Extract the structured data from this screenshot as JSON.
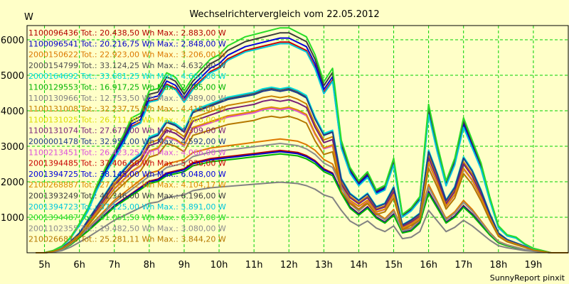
{
  "chart_data": {
    "type": "line",
    "title": "Wechselrichtervergleich vom 22.05.2012",
    "y_unit": "W",
    "x_tick_labels": [
      "5h",
      "6h",
      "7h",
      "8h",
      "9h",
      "10h",
      "11h",
      "12h",
      "13h",
      "14h",
      "15h",
      "16h",
      "17h",
      "18h",
      "19h"
    ],
    "y_tick_labels": [
      "1000",
      "2000",
      "3000",
      "4000",
      "5000",
      "6000"
    ],
    "ylim": [
      0,
      6400
    ],
    "xlim": [
      4.5,
      20.0
    ],
    "grid": true,
    "legend_position": "top-left",
    "footer": "SunnyReport pinxit",
    "series": [
      {
        "name": "1100096436 Tot.: 20.438,50 Wh Max.: 2.883,00 W",
        "color": "#b40000",
        "shape": "S",
        "peak": 2883
      },
      {
        "name": "1100096541 Tot.: 20.216,75 Wh Max.: 2.848,00 W",
        "color": "#0000c8",
        "shape": "S",
        "peak": 2848
      },
      {
        "name": "2000150622 Tot.: 22.923,00 Wh Max.: 3.206,00 W",
        "color": "#dc7800",
        "shape": "S",
        "peak": 3206
      },
      {
        "name": "2000154799 Tot.: 33.124,25 Wh Max.: 4.632,00 W",
        "color": "#505050",
        "shape": "M",
        "peak": 4632
      },
      {
        "name": "2000164692 Tot.: 33.681,25 Wh Max.: 4.664,00 W",
        "color": "#00dcdc",
        "shape": "M",
        "peak": 4664
      },
      {
        "name": "1100129553 Tot.: 16.917,25 Wh Max.: 2.785,00 W",
        "color": "#00b400",
        "shape": "S",
        "peak": 2785
      },
      {
        "name": "1100130966 Tot.: 12.753,50 Wh Max.: 1.989,00 W",
        "color": "#828282",
        "shape": "S",
        "peak": 1989
      },
      {
        "name": "1100131008 Tot.: 32.237,75 Wh Max.: 4.415,00 W",
        "color": "#c88200",
        "shape": "M",
        "peak": 4415
      },
      {
        "name": "1100131025 Tot.: 26.711,00 Wh Max.: 4.066,00 W",
        "color": "#dcdc00",
        "shape": "M",
        "peak": 4066
      },
      {
        "name": "1100131074 Tot.: 27.677,00 Wh Max.: 4.309,00 W",
        "color": "#781e78",
        "shape": "M",
        "peak": 4309
      },
      {
        "name": "2000001478 Tot.: 32.951,00 Wh Max.: 4.592,00 W",
        "color": "#1e3c8c",
        "shape": "M",
        "peak": 4592
      },
      {
        "name": "1100213451 Tot.: 26.423,25 Wh Max.: 4.066,00 W",
        "color": "#dc50dc",
        "shape": "M",
        "peak": 4066
      },
      {
        "name": "2001394485 Tot.: 37.406,50 Wh Max.: 5.936,00 W",
        "color": "#c80000",
        "shape": "L",
        "peak": 5936
      },
      {
        "name": "2001394725 Tot.: 38.145,00 Wh Max.: 6.048,00 W",
        "color": "#0000dc",
        "shape": "L",
        "peak": 6048
      },
      {
        "name": "2100268887 Tot.: 27.297,12 Wh Max.: 4.104,17 W",
        "color": "#dc8c00",
        "shape": "M",
        "peak": 4104.17
      },
      {
        "name": "2001393249 Tot.: 41.346,00 Wh Max.: 6.196,00 W",
        "color": "#3c3c3c",
        "shape": "L",
        "peak": 6196
      },
      {
        "name": "2001394723 Tot.: 37.125,00 Wh Max.: 5.891,00 W",
        "color": "#00c8dc",
        "shape": "L",
        "peak": 5891
      },
      {
        "name": "2001394487 Tot.: 41.051,50 Wh Max.: 6.337,00 W",
        "color": "#28dc28",
        "shape": "L",
        "peak": 6337
      },
      {
        "name": "2001102355 Tot.: 19.482,50 Wh Max.: 3.080,00 W",
        "color": "#8c8c8c",
        "shape": "S",
        "peak": 3080
      },
      {
        "name": "2100266876 Tot.: 25.281,11 Wh Max.: 3.844,20 W",
        "color": "#b47800",
        "shape": "M",
        "peak": 3844.2
      }
    ],
    "profiles": {
      "x": [
        4.75,
        5.0,
        5.25,
        5.5,
        5.75,
        6.0,
        6.25,
        6.5,
        6.75,
        7.0,
        7.25,
        7.5,
        7.75,
        8.0,
        8.25,
        8.5,
        8.75,
        9.0,
        9.25,
        9.5,
        9.75,
        10.0,
        10.25,
        10.5,
        10.75,
        11.0,
        11.25,
        11.5,
        11.75,
        12.0,
        12.25,
        12.5,
        12.75,
        13.0,
        13.25,
        13.5,
        13.75,
        14.0,
        14.25,
        14.5,
        14.75,
        15.0,
        15.25,
        15.5,
        15.75,
        16.0,
        16.25,
        16.5,
        16.75,
        17.0,
        17.25,
        17.5,
        17.75,
        18.0,
        18.25,
        18.5,
        18.75,
        19.0,
        19.25,
        19.5,
        19.75,
        20.0
      ],
      "L": [
        0.0,
        0.0,
        0.01,
        0.03,
        0.07,
        0.13,
        0.2,
        0.3,
        0.38,
        0.45,
        0.52,
        0.6,
        0.62,
        0.72,
        0.73,
        0.8,
        0.78,
        0.72,
        0.78,
        0.82,
        0.86,
        0.88,
        0.92,
        0.94,
        0.96,
        0.97,
        0.98,
        0.99,
        1.0,
        1.0,
        0.98,
        0.96,
        0.88,
        0.76,
        0.82,
        0.5,
        0.38,
        0.32,
        0.36,
        0.28,
        0.3,
        0.42,
        0.17,
        0.2,
        0.25,
        0.66,
        0.48,
        0.32,
        0.42,
        0.6,
        0.5,
        0.4,
        0.25,
        0.12,
        0.08,
        0.07,
        0.04,
        0.02,
        0.01,
        0.0,
        0.0,
        0.0
      ],
      "M": [
        0.0,
        0.0,
        0.01,
        0.03,
        0.07,
        0.12,
        0.2,
        0.28,
        0.36,
        0.44,
        0.5,
        0.56,
        0.6,
        0.7,
        0.72,
        0.8,
        0.78,
        0.74,
        0.86,
        0.88,
        0.9,
        0.92,
        0.94,
        0.95,
        0.96,
        0.97,
        0.99,
        1.0,
        0.99,
        1.0,
        0.98,
        0.95,
        0.82,
        0.72,
        0.74,
        0.45,
        0.36,
        0.32,
        0.36,
        0.28,
        0.3,
        0.4,
        0.17,
        0.2,
        0.24,
        0.62,
        0.48,
        0.32,
        0.4,
        0.58,
        0.5,
        0.38,
        0.24,
        0.12,
        0.08,
        0.06,
        0.04,
        0.02,
        0.01,
        0.0,
        0.0,
        0.0
      ],
      "S": [
        0.0,
        0.0,
        0.01,
        0.03,
        0.08,
        0.15,
        0.22,
        0.3,
        0.38,
        0.46,
        0.52,
        0.58,
        0.64,
        0.7,
        0.72,
        0.78,
        0.8,
        0.82,
        0.88,
        0.9,
        0.92,
        0.93,
        0.94,
        0.95,
        0.96,
        0.97,
        0.98,
        0.99,
        1.0,
        0.99,
        0.98,
        0.95,
        0.9,
        0.82,
        0.78,
        0.6,
        0.45,
        0.38,
        0.45,
        0.35,
        0.3,
        0.38,
        0.2,
        0.22,
        0.3,
        0.6,
        0.45,
        0.3,
        0.36,
        0.46,
        0.38,
        0.28,
        0.18,
        0.1,
        0.07,
        0.05,
        0.03,
        0.02,
        0.01,
        0.0,
        0.0,
        0.0
      ]
    }
  }
}
